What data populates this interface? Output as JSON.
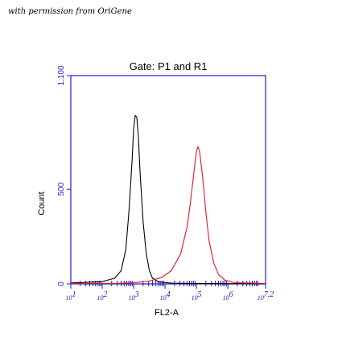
{
  "credit": "with permission from OriGene",
  "chart_data": {
    "type": "line",
    "title": "Gate: P1 and R1",
    "xlabel": "FL2-A",
    "ylabel": "Count",
    "x_scale": "log",
    "xlim": [
      1,
      7.2
    ],
    "ylim": [
      0,
      1100
    ],
    "yticks": [
      {
        "value": 0,
        "label": "0"
      },
      {
        "value": 500,
        "label": "500"
      },
      {
        "value": 1100,
        "label": "1,100"
      }
    ],
    "xticks": [
      {
        "value": 1,
        "label": "10^1"
      },
      {
        "value": 2,
        "label": "10^2"
      },
      {
        "value": 3,
        "label": "10^3"
      },
      {
        "value": 4,
        "label": "10^4"
      },
      {
        "value": 5,
        "label": "10^5"
      },
      {
        "value": 6,
        "label": "10^6"
      },
      {
        "value": 7.2,
        "label": "10^7.2"
      }
    ],
    "grid": false,
    "colors": {
      "axis": "#1a1ad0",
      "series_black": "#000000",
      "series_red": "#e8141e"
    },
    "series": [
      {
        "color": "#000000",
        "x": [
          1.0,
          1.5,
          2.0,
          2.4,
          2.6,
          2.75,
          2.85,
          2.95,
          3.0,
          3.05,
          3.1,
          3.15,
          3.2,
          3.3,
          3.4,
          3.5,
          3.6,
          3.8,
          4.2,
          5.0,
          7.2
        ],
        "y": [
          5,
          8,
          12,
          30,
          70,
          180,
          380,
          650,
          820,
          890,
          880,
          780,
          600,
          330,
          160,
          70,
          30,
          10,
          4,
          2,
          1
        ]
      },
      {
        "color": "#e8141e",
        "x": [
          1.0,
          2.5,
          3.0,
          3.5,
          3.9,
          4.2,
          4.5,
          4.7,
          4.8,
          4.9,
          5.0,
          5.05,
          5.1,
          5.2,
          5.3,
          5.4,
          5.55,
          5.7,
          5.9,
          6.2,
          7.2
        ],
        "y": [
          2,
          3,
          6,
          15,
          35,
          70,
          160,
          300,
          420,
          560,
          700,
          725,
          700,
          560,
          380,
          230,
          110,
          50,
          20,
          7,
          2
        ]
      }
    ]
  }
}
